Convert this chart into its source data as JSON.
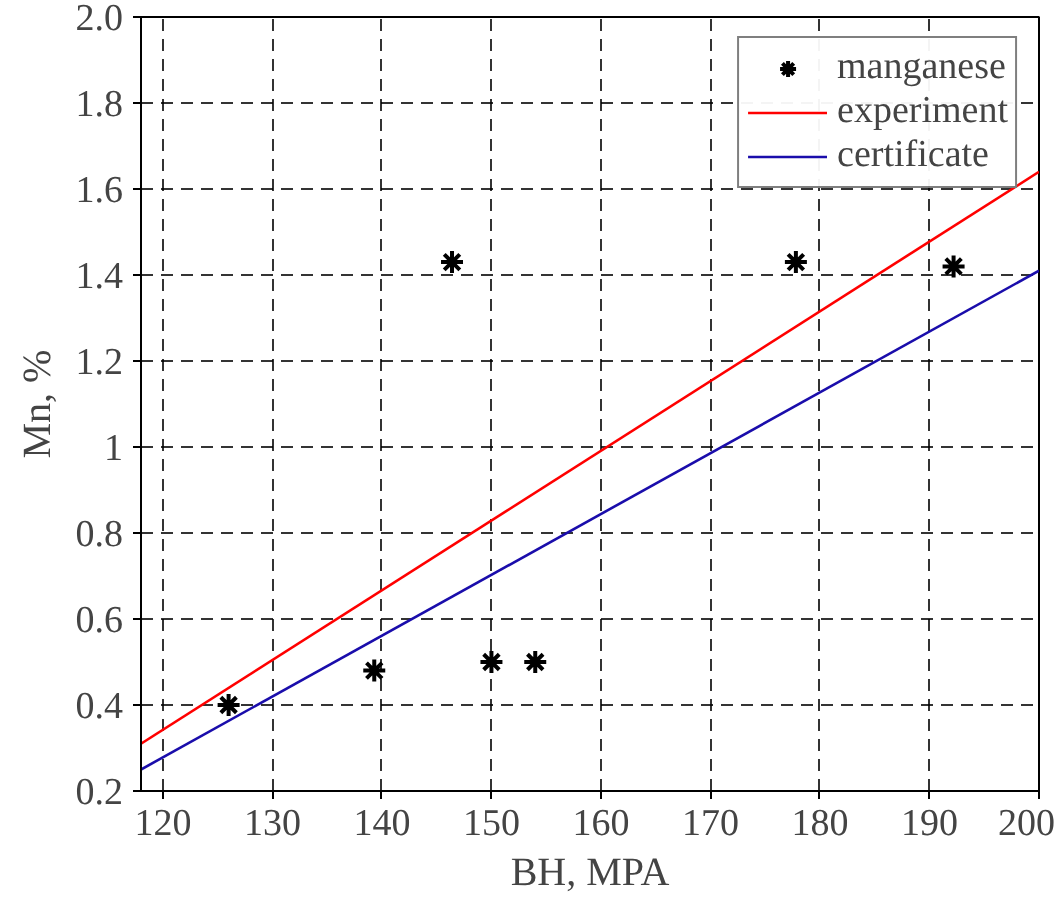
{
  "chart_data": {
    "type": "scatter",
    "xlabel": "BH, MPA",
    "ylabel": "Mn, %",
    "xlim": [
      118,
      200
    ],
    "ylim": [
      0.2,
      2.0
    ],
    "xticks": [
      120,
      130,
      140,
      150,
      160,
      170,
      180,
      190,
      200
    ],
    "yticks": [
      0.2,
      0.4,
      0.6,
      0.8,
      1,
      1.2,
      1.4,
      1.6,
      1.8,
      {
        "value": 2.0,
        "label": "2.0"
      }
    ],
    "grid": true,
    "legend": "top right",
    "series": [
      {
        "name": "manganese",
        "marker": "cross",
        "color": "#000000",
        "x": [
          126,
          139.3,
          146.4,
          150,
          154,
          177.8,
          192.2
        ],
        "values": [
          0.4,
          0.48,
          1.43,
          0.5,
          0.5,
          1.43,
          1.42
        ]
      },
      {
        "name": "experiment",
        "type": "line",
        "color": "#ff0000",
        "x": [
          118,
          200
        ],
        "values": [
          0.31,
          1.64
        ]
      },
      {
        "name": "certificate",
        "type": "line",
        "color": "#1a0dab",
        "x": [
          118,
          200
        ],
        "values": [
          0.25,
          1.41
        ]
      }
    ]
  }
}
